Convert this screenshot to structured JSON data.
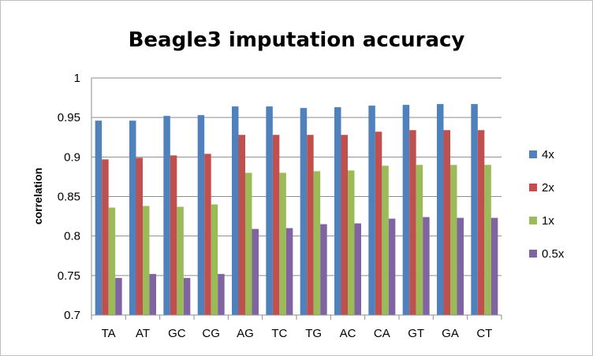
{
  "chart_data": {
    "type": "bar",
    "title": "Beagle3 imputation accuracy",
    "xlabel": "",
    "ylabel": "correlation",
    "ylim": [
      0.7,
      1.0
    ],
    "yticks": [
      "0.7",
      "0.75",
      "0.8",
      "0.85",
      "0.9",
      "0.95",
      "1"
    ],
    "grid": "horizontal",
    "legend_position": "right",
    "categories": [
      "TA",
      "AT",
      "GC",
      "CG",
      "AG",
      "TC",
      "TG",
      "AC",
      "CA",
      "GT",
      "GA",
      "CT"
    ],
    "series": [
      {
        "name": "4x",
        "color": "#4f81bd",
        "values": [
          0.946,
          0.946,
          0.952,
          0.953,
          0.964,
          0.964,
          0.962,
          0.963,
          0.965,
          0.966,
          0.967,
          0.967
        ]
      },
      {
        "name": "2x",
        "color": "#c0504d",
        "values": [
          0.897,
          0.899,
          0.902,
          0.904,
          0.928,
          0.928,
          0.928,
          0.928,
          0.932,
          0.934,
          0.934,
          0.934
        ]
      },
      {
        "name": "1x",
        "color": "#9bbb59",
        "values": [
          0.836,
          0.838,
          0.837,
          0.84,
          0.88,
          0.88,
          0.882,
          0.883,
          0.889,
          0.89,
          0.89,
          0.89
        ]
      },
      {
        "name": "0.5x",
        "color": "#8064a2",
        "values": [
          0.747,
          0.752,
          0.747,
          0.752,
          0.809,
          0.81,
          0.815,
          0.816,
          0.822,
          0.824,
          0.823,
          0.823
        ]
      }
    ]
  }
}
